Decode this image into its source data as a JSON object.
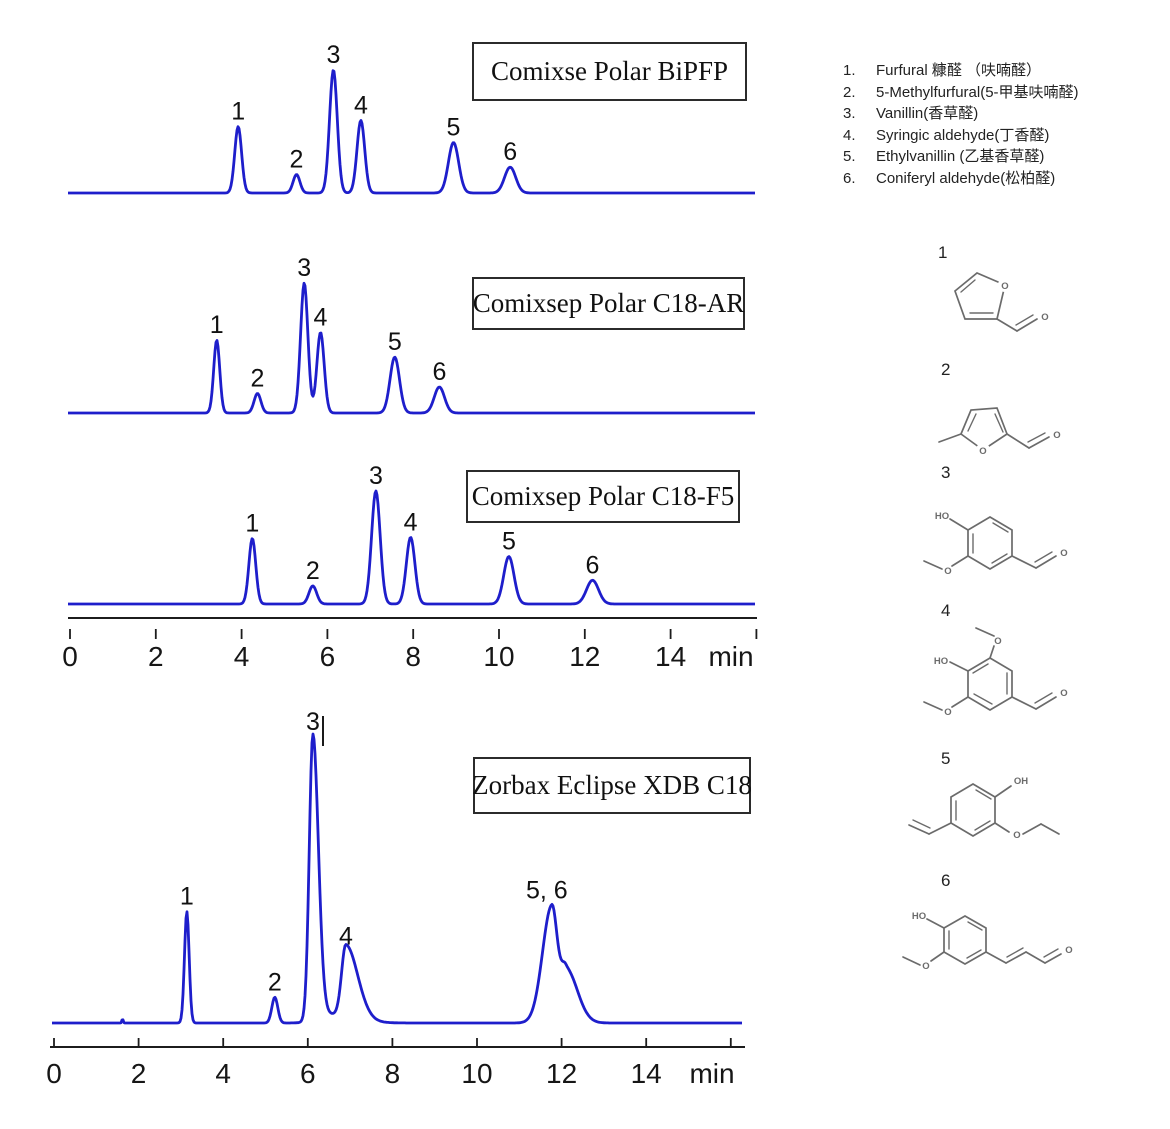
{
  "legend": {
    "items": [
      {
        "num": "1.",
        "text": "Furfural 糠醛 （呋喃醛）"
      },
      {
        "num": "2.",
        "text": "5-Methylfurfural(5-甲基呋喃醛)"
      },
      {
        "num": "3.",
        "text": "Vanillin(香草醛)"
      },
      {
        "num": "4.",
        "text": "Syringic aldehyde(丁香醛)"
      },
      {
        "num": "5.",
        "text": "Ethylvanillin (乙基香草醛)"
      },
      {
        "num": "6.",
        "text": "Coniferyl aldehyde(松柏醛)"
      }
    ]
  },
  "structures": [
    {
      "num": "1",
      "name": "furfural",
      "atom_labels": [
        "O",
        "O"
      ]
    },
    {
      "num": "2",
      "name": "5-methylfurfural",
      "atom_labels": [
        "O",
        "O"
      ]
    },
    {
      "num": "3",
      "name": "vanillin",
      "atom_labels": [
        "HO",
        "O",
        "O"
      ]
    },
    {
      "num": "4",
      "name": "syringic-aldehyde",
      "atom_labels": [
        "O",
        "HO",
        "O",
        "O"
      ]
    },
    {
      "num": "5",
      "name": "ethylvanillin",
      "atom_labels": [
        "OH",
        "O"
      ]
    },
    {
      "num": "6",
      "name": "coniferyl-aldehyde",
      "atom_labels": [
        "HO",
        "O",
        "O"
      ]
    }
  ],
  "axes": [
    {
      "tick_labels": [
        "0",
        "2",
        "4",
        "6",
        "8",
        "10",
        "12",
        "14"
      ],
      "tick_step_min": 2,
      "n_ticks": 9,
      "unit": "min"
    },
    {
      "tick_labels": [
        "0",
        "2",
        "4",
        "6",
        "8",
        "10",
        "12",
        "14"
      ],
      "tick_step_min": 2,
      "n_ticks": 9,
      "unit": "min"
    }
  ],
  "chart_data": [
    {
      "type": "line",
      "title": "Comixse Polar BiPFP",
      "xlabel": "min",
      "x_range": [
        0,
        16
      ],
      "trace_color": "#1e1ecb",
      "peaks": [
        {
          "label": "1",
          "t": 3.92,
          "intensity": 54,
          "sigma": 0.08
        },
        {
          "label": "2",
          "t": 5.28,
          "intensity": 15,
          "sigma": 0.08
        },
        {
          "label": "3",
          "t": 6.14,
          "intensity": 100,
          "sigma": 0.09
        },
        {
          "label": "4",
          "t": 6.78,
          "intensity": 59,
          "sigma": 0.09
        },
        {
          "label": "5",
          "t": 8.94,
          "intensity": 41,
          "sigma": 0.12
        },
        {
          "label": "6",
          "t": 10.26,
          "intensity": 21,
          "sigma": 0.13
        }
      ]
    },
    {
      "type": "line",
      "title": "Comixsep Polar C18-AR",
      "xlabel": "min",
      "x_range": [
        0,
        16
      ],
      "trace_color": "#1e1ecb",
      "peaks": [
        {
          "label": "1",
          "t": 3.42,
          "intensity": 56,
          "sigma": 0.07
        },
        {
          "label": "2",
          "t": 4.37,
          "intensity": 15,
          "sigma": 0.08
        },
        {
          "label": "3",
          "t": 5.46,
          "intensity": 100,
          "sigma": 0.085
        },
        {
          "label": "4",
          "t": 5.84,
          "intensity": 62,
          "sigma": 0.085
        },
        {
          "label": "5",
          "t": 7.57,
          "intensity": 43,
          "sigma": 0.11
        },
        {
          "label": "6",
          "t": 8.61,
          "intensity": 20,
          "sigma": 0.12
        }
      ]
    },
    {
      "type": "line",
      "title": "Comixsep Polar C18-F5",
      "xlabel": "min",
      "x_range": [
        0,
        16
      ],
      "trace_color": "#1e1ecb",
      "peaks": [
        {
          "label": "1",
          "t": 4.25,
          "intensity": 58,
          "sigma": 0.08
        },
        {
          "label": "2",
          "t": 5.66,
          "intensity": 16,
          "sigma": 0.09
        },
        {
          "label": "3",
          "t": 7.13,
          "intensity": 100,
          "sigma": 0.1
        },
        {
          "label": "4",
          "t": 7.94,
          "intensity": 59,
          "sigma": 0.1
        },
        {
          "label": "5",
          "t": 10.23,
          "intensity": 42,
          "sigma": 0.12
        },
        {
          "label": "6",
          "t": 12.18,
          "intensity": 21,
          "sigma": 0.14
        }
      ]
    },
    {
      "type": "line",
      "title": "Zorbax Eclipse XDB C18",
      "xlabel": "min",
      "x_range": [
        0,
        16
      ],
      "trace_color": "#1e1ecb",
      "peaks": [
        {
          "t": 1.62,
          "intensity": 1.5,
          "sigma": 0.015
        },
        {
          "label": "1",
          "t": 3.14,
          "intensity": 39,
          "sigma": 0.055
        },
        {
          "label": "2",
          "t": 5.22,
          "intensity": 9,
          "sigma": 0.07
        },
        {
          "label": "3",
          "t": 6.12,
          "intensity": 100,
          "sigma_l": 0.085,
          "sigma_r": 0.13
        },
        {
          "t": 6.55,
          "intensity": 3,
          "sigma_l": 0.3,
          "sigma_r": 0.55
        },
        {
          "label": "4",
          "t": 6.9,
          "intensity": 25,
          "sigma_l": 0.1,
          "sigma_r": 0.28
        },
        {
          "label": "5, 6",
          "label_dt": -0.12,
          "t": 11.77,
          "intensity": 41,
          "sigma_l": 0.22,
          "sigma_r": 0.13
        },
        {
          "t": 12.1,
          "intensity": 19,
          "sigma_l": 0.12,
          "sigma_r": 0.27
        }
      ]
    }
  ]
}
